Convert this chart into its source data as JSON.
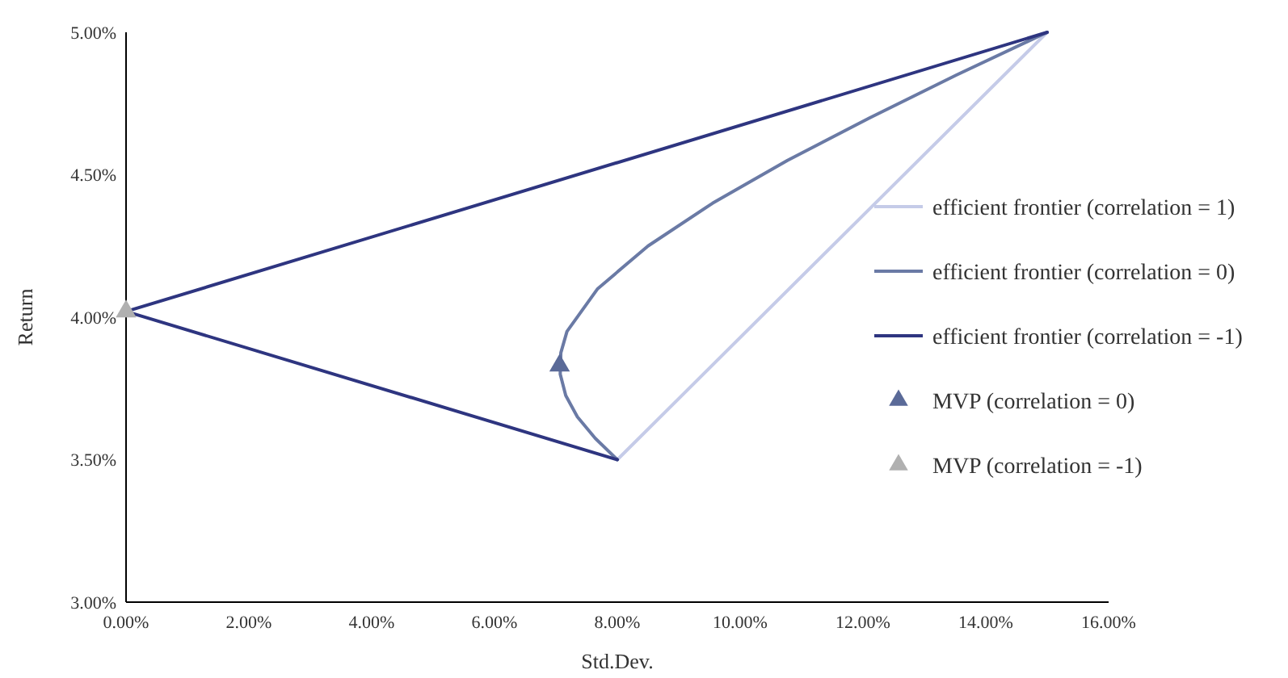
{
  "chart_data": {
    "type": "line",
    "xlabel": "Std.Dev.",
    "ylabel": "Return",
    "xlim": [
      0,
      16
    ],
    "ylim": [
      3,
      5
    ],
    "xticks": [
      {
        "value": 0,
        "label": "0.00%"
      },
      {
        "value": 2,
        "label": "2.00%"
      },
      {
        "value": 4,
        "label": "4.00%"
      },
      {
        "value": 6,
        "label": "6.00%"
      },
      {
        "value": 8,
        "label": "8.00%"
      },
      {
        "value": 10,
        "label": "10.00%"
      },
      {
        "value": 12,
        "label": "12.00%"
      },
      {
        "value": 14,
        "label": "14.00%"
      },
      {
        "value": 16,
        "label": "16.00%"
      }
    ],
    "yticks": [
      {
        "value": 3,
        "label": "3.00%"
      },
      {
        "value": 3.5,
        "label": "3.50%"
      },
      {
        "value": 4,
        "label": "4.00%"
      },
      {
        "value": 4.5,
        "label": "4.50%"
      },
      {
        "value": 5,
        "label": "5.00%"
      }
    ],
    "grid": false,
    "legend": "right",
    "marker": "none",
    "line_style": "solid",
    "series": [
      {
        "name": "efficient frontier (correlation = 1)",
        "color": "#c5cbe8",
        "x": [
          8,
          15
        ],
        "values": [
          3.5,
          5
        ]
      },
      {
        "name": "efficient frontier (correlation = 0)",
        "color": "#6a7aa5",
        "x": [
          8,
          7.64,
          7.35,
          7.16,
          7.07,
          7.08,
          7.18,
          7.68,
          8.5,
          9.55,
          10.77,
          12.11,
          13.52,
          15
        ],
        "values": [
          3.5,
          3.575,
          3.65,
          3.725,
          3.8,
          3.875,
          3.95,
          4.1,
          4.25,
          4.4,
          4.55,
          4.7,
          4.85,
          5
        ]
      },
      {
        "name": "efficient frontier (correlation = -1)",
        "color": "#2e3580",
        "x": [
          8,
          0,
          15
        ],
        "values": [
          3.5,
          4.02,
          5
        ]
      },
      {
        "name": "MVP (correlation = 0)",
        "type": "scatter",
        "marker": "triangle",
        "color": "#5a6a98",
        "x": [
          7.06
        ],
        "values": [
          3.83
        ]
      },
      {
        "name": "MVP (correlation = -1)",
        "type": "scatter",
        "marker": "triangle",
        "color": "#b0b0b0",
        "x": [
          0
        ],
        "values": [
          4.02
        ]
      }
    ]
  }
}
